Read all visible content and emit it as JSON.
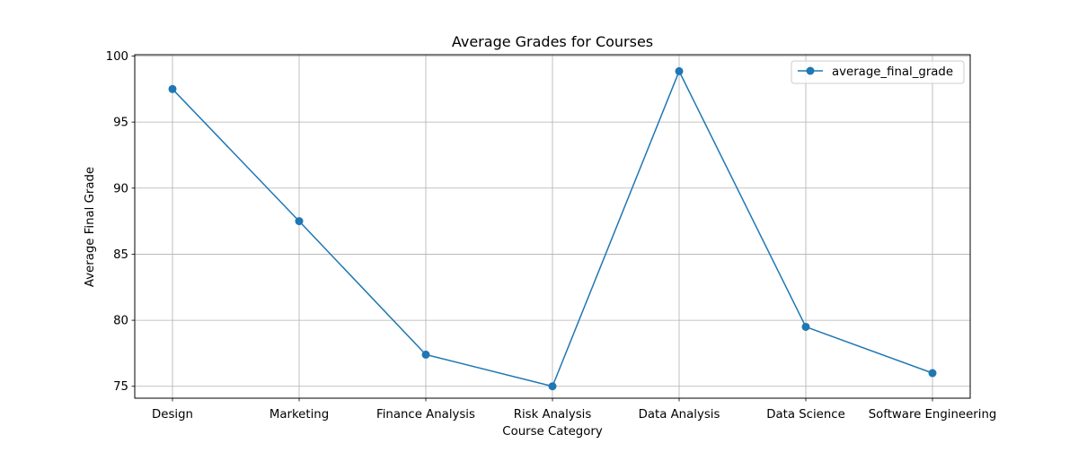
{
  "chart_data": {
    "type": "line",
    "title": "Average Grades for Courses",
    "xlabel": "Course Category",
    "ylabel": "Average Final Grade",
    "categories": [
      "Design",
      "Marketing",
      "Finance Analysis",
      "Risk Analysis",
      "Data Analysis",
      "Data Science",
      "Software Engineering"
    ],
    "series": [
      {
        "name": "average_final_grade",
        "values": [
          97.5,
          87.5,
          77.4,
          75.0,
          98.85,
          79.5,
          76.0
        ],
        "color": "#1f77b4",
        "marker": "circle"
      }
    ],
    "yticks": [
      75,
      80,
      85,
      90,
      95,
      100
    ],
    "ylim": [
      74.1,
      100.1
    ],
    "grid": true,
    "legend_position": "top-right"
  }
}
